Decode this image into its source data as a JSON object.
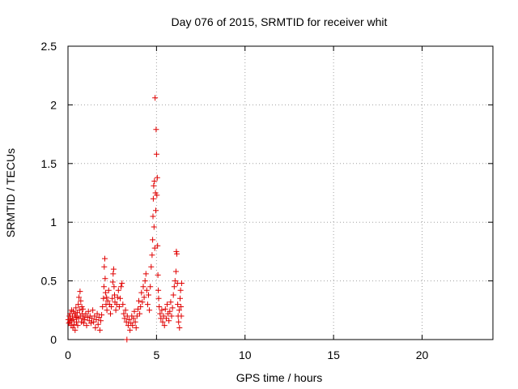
{
  "chart_data": {
    "type": "scatter",
    "title": "Day 076 of 2015, SRMTID for receiver whit",
    "xlabel": "GPS time / hours",
    "ylabel": "SRMTID / TECUs",
    "xlim": [
      0,
      24
    ],
    "ylim": [
      0,
      2.5
    ],
    "xticks": [
      0,
      5,
      10,
      15,
      20
    ],
    "yticks": [
      0,
      0.5,
      1,
      1.5,
      2,
      2.5
    ],
    "xtick_labels": [
      "0",
      "5",
      "10",
      "15",
      "20"
    ],
    "ytick_labels": [
      "0",
      "0.5",
      "1",
      "1.5",
      "2",
      "2.5"
    ],
    "grid": true,
    "marker": "+",
    "color": "#e00000",
    "series": [
      {
        "name": "SRMTID",
        "points": [
          [
            0.02,
            0.17
          ],
          [
            0.05,
            0.14
          ],
          [
            0.08,
            0.2
          ],
          [
            0.1,
            0.15
          ],
          [
            0.12,
            0.22
          ],
          [
            0.15,
            0.18
          ],
          [
            0.18,
            0.12
          ],
          [
            0.2,
            0.25
          ],
          [
            0.22,
            0.16
          ],
          [
            0.25,
            0.2
          ],
          [
            0.28,
            0.1
          ],
          [
            0.3,
            0.24
          ],
          [
            0.32,
            0.17
          ],
          [
            0.35,
            0.13
          ],
          [
            0.38,
            0.22
          ],
          [
            0.4,
            0.08
          ],
          [
            0.42,
            0.2
          ],
          [
            0.45,
            0.27
          ],
          [
            0.48,
            0.15
          ],
          [
            0.5,
            0.19
          ],
          [
            0.52,
            0.23
          ],
          [
            0.55,
            0.12
          ],
          [
            0.58,
            0.3
          ],
          [
            0.6,
            0.18
          ],
          [
            0.62,
            0.36
          ],
          [
            0.65,
            0.25
          ],
          [
            0.68,
            0.41
          ],
          [
            0.7,
            0.2
          ],
          [
            0.72,
            0.33
          ],
          [
            0.75,
            0.15
          ],
          [
            0.78,
            0.28
          ],
          [
            0.8,
            0.22
          ],
          [
            0.82,
            0.18
          ],
          [
            0.85,
            0.26
          ],
          [
            0.88,
            0.14
          ],
          [
            0.9,
            0.2
          ],
          [
            0.95,
            0.17
          ],
          [
            1.0,
            0.22
          ],
          [
            1.05,
            0.12
          ],
          [
            1.1,
            0.19
          ],
          [
            1.15,
            0.24
          ],
          [
            1.2,
            0.16
          ],
          [
            1.25,
            0.2
          ],
          [
            1.3,
            0.14
          ],
          [
            1.35,
            0.18
          ],
          [
            1.4,
            0.25
          ],
          [
            1.45,
            0.15
          ],
          [
            1.5,
            0.2
          ],
          [
            1.55,
            0.1
          ],
          [
            1.6,
            0.17
          ],
          [
            1.65,
            0.22
          ],
          [
            1.7,
            0.13
          ],
          [
            1.75,
            0.19
          ],
          [
            1.8,
            0.08
          ],
          [
            1.85,
            0.16
          ],
          [
            1.9,
            0.21
          ],
          [
            1.95,
            0.28
          ],
          [
            2.0,
            0.35
          ],
          [
            2.03,
            0.45
          ],
          [
            2.05,
            0.62
          ],
          [
            2.08,
            0.69
          ],
          [
            2.1,
            0.52
          ],
          [
            2.12,
            0.4
          ],
          [
            2.15,
            0.3
          ],
          [
            2.18,
            0.36
          ],
          [
            2.2,
            0.25
          ],
          [
            2.25,
            0.33
          ],
          [
            2.3,
            0.42
          ],
          [
            2.35,
            0.3
          ],
          [
            2.4,
            0.22
          ],
          [
            2.45,
            0.28
          ],
          [
            2.5,
            0.35
          ],
          [
            2.53,
            0.49
          ],
          [
            2.55,
            0.56
          ],
          [
            2.58,
            0.6
          ],
          [
            2.6,
            0.45
          ],
          [
            2.63,
            0.38
          ],
          [
            2.65,
            0.32
          ],
          [
            2.7,
            0.25
          ],
          [
            2.75,
            0.3
          ],
          [
            2.8,
            0.36
          ],
          [
            2.85,
            0.42
          ],
          [
            2.9,
            0.28
          ],
          [
            2.95,
            0.35
          ],
          [
            3.0,
            0.45
          ],
          [
            3.05,
            0.48
          ],
          [
            3.1,
            0.3
          ],
          [
            3.15,
            0.22
          ],
          [
            3.2,
            0.18
          ],
          [
            3.25,
            0.25
          ],
          [
            3.3,
            0.15
          ],
          [
            3.33,
            0.0
          ],
          [
            3.35,
            0.2
          ],
          [
            3.4,
            0.12
          ],
          [
            3.45,
            0.17
          ],
          [
            3.5,
            0.08
          ],
          [
            3.55,
            0.14
          ],
          [
            3.6,
            0.2
          ],
          [
            3.65,
            0.12
          ],
          [
            3.7,
            0.18
          ],
          [
            3.75,
            0.24
          ],
          [
            3.8,
            0.15
          ],
          [
            3.85,
            0.1
          ],
          [
            3.9,
            0.2
          ],
          [
            3.95,
            0.26
          ],
          [
            4.0,
            0.33
          ],
          [
            4.05,
            0.22
          ],
          [
            4.1,
            0.28
          ],
          [
            4.15,
            0.4
          ],
          [
            4.2,
            0.32
          ],
          [
            4.25,
            0.45
          ],
          [
            4.3,
            0.36
          ],
          [
            4.35,
            0.5
          ],
          [
            4.4,
            0.56
          ],
          [
            4.45,
            0.42
          ],
          [
            4.5,
            0.3
          ],
          [
            4.55,
            0.38
          ],
          [
            4.6,
            0.25
          ],
          [
            4.65,
            0.45
          ],
          [
            4.7,
            0.62
          ],
          [
            4.75,
            0.72
          ],
          [
            4.78,
            0.85
          ],
          [
            4.8,
            1.05
          ],
          [
            4.82,
            1.2
          ],
          [
            4.84,
            1.31
          ],
          [
            4.86,
            0.96
          ],
          [
            4.88,
            1.35
          ],
          [
            4.9,
            0.78
          ],
          [
            4.92,
            2.06
          ],
          [
            4.94,
            1.25
          ],
          [
            4.96,
            1.1
          ],
          [
            4.98,
            1.79
          ],
          [
            5.0,
            1.58
          ],
          [
            5.02,
            1.23
          ],
          [
            5.04,
            1.38
          ],
          [
            5.06,
            0.8
          ],
          [
            5.08,
            0.55
          ],
          [
            5.1,
            0.42
          ],
          [
            5.12,
            0.35
          ],
          [
            5.15,
            0.28
          ],
          [
            5.2,
            0.22
          ],
          [
            5.25,
            0.18
          ],
          [
            5.3,
            0.25
          ],
          [
            5.35,
            0.15
          ],
          [
            5.4,
            0.2
          ],
          [
            5.45,
            0.12
          ],
          [
            5.5,
            0.26
          ],
          [
            5.55,
            0.18
          ],
          [
            5.6,
            0.3
          ],
          [
            5.65,
            0.22
          ],
          [
            5.7,
            0.16
          ],
          [
            5.75,
            0.24
          ],
          [
            5.8,
            0.32
          ],
          [
            5.85,
            0.2
          ],
          [
            5.9,
            0.27
          ],
          [
            5.95,
            0.38
          ],
          [
            6.0,
            0.45
          ],
          [
            6.05,
            0.5
          ],
          [
            6.1,
            0.58
          ],
          [
            6.12,
            0.75
          ],
          [
            6.15,
            0.73
          ],
          [
            6.18,
            0.48
          ],
          [
            6.2,
            0.3
          ],
          [
            6.22,
            0.2
          ],
          [
            6.25,
            0.15
          ],
          [
            6.28,
            0.25
          ],
          [
            6.3,
            0.1
          ],
          [
            6.33,
            0.35
          ],
          [
            6.36,
            0.42
          ],
          [
            6.38,
            0.28
          ],
          [
            6.4,
            0.2
          ],
          [
            6.42,
            0.48
          ]
        ]
      }
    ]
  }
}
